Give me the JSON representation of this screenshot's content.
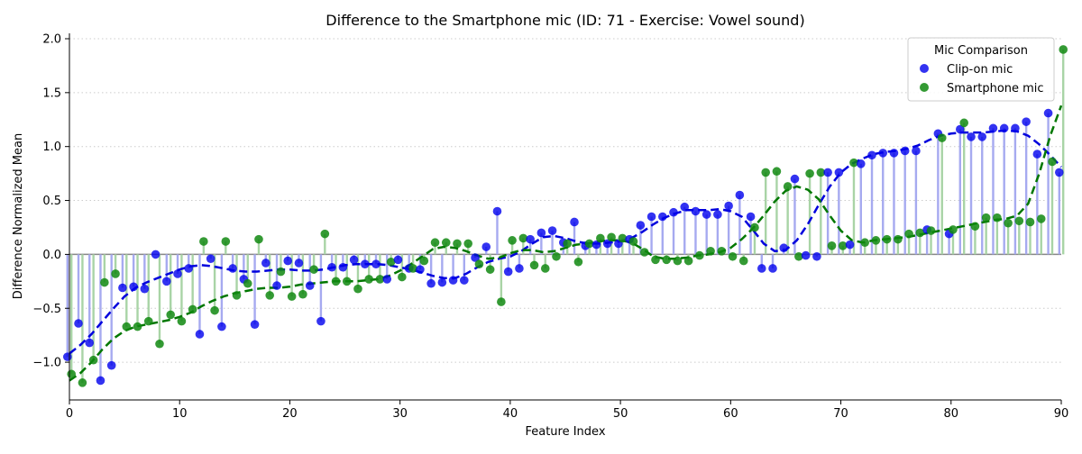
{
  "chart_data": {
    "type": "scatter",
    "title": "Difference to the Smartphone mic (ID: 71 - Exercise: Vowel sound)",
    "xlabel": "Feature Index",
    "ylabel": "Difference Normalized Mean",
    "xlim": [
      0,
      90
    ],
    "ylim": [
      -1.35,
      2.05
    ],
    "xticks": [
      0,
      10,
      20,
      30,
      40,
      50,
      60,
      70,
      80,
      90
    ],
    "yticks": [
      -1.0,
      -0.5,
      0.0,
      0.5,
      1.0,
      1.5,
      2.0
    ],
    "xtick_labels": [
      "0",
      "10",
      "20",
      "30",
      "40",
      "50",
      "60",
      "70",
      "80",
      "90"
    ],
    "ytick_labels": [
      "−1.0",
      "−0.5",
      "0.0",
      "0.5",
      "1.0",
      "1.5",
      "2.0"
    ],
    "grid": "horizontal dotted",
    "legend": {
      "title": "Mic Comparison",
      "placement": "upper right"
    },
    "series": [
      {
        "name": "Clip-on mic",
        "color": "#0000ee",
        "stem_color": "#a6aaf0",
        "trend_color": "#0000dd",
        "x": [
          0,
          1,
          2,
          3,
          4,
          5,
          6,
          7,
          8,
          9,
          10,
          11,
          12,
          13,
          14,
          15,
          16,
          17,
          18,
          19,
          20,
          21,
          22,
          23,
          24,
          25,
          26,
          27,
          28,
          29,
          30,
          31,
          32,
          33,
          34,
          35,
          36,
          37,
          38,
          39,
          40,
          41,
          42,
          43,
          44,
          45,
          46,
          47,
          48,
          49,
          50,
          51,
          52,
          53,
          54,
          55,
          56,
          57,
          58,
          59,
          60,
          61,
          62,
          63,
          64,
          65,
          66,
          67,
          68,
          69,
          70,
          71,
          72,
          73,
          74,
          75,
          76,
          77,
          78,
          79,
          80,
          81,
          82,
          83,
          84,
          85,
          86,
          87,
          88,
          89,
          90
        ],
        "values": [
          -0.95,
          -0.64,
          -0.82,
          -1.17,
          -1.03,
          -0.31,
          -0.3,
          -0.32,
          0.0,
          -0.25,
          -0.18,
          -0.13,
          -0.74,
          -0.04,
          -0.67,
          -0.13,
          -0.23,
          -0.65,
          -0.08,
          -0.29,
          -0.06,
          -0.08,
          -0.29,
          -0.62,
          -0.12,
          -0.12,
          -0.05,
          -0.09,
          -0.09,
          -0.23,
          -0.05,
          -0.13,
          -0.14,
          -0.27,
          -0.26,
          -0.24,
          -0.24,
          -0.03,
          0.07,
          0.4,
          -0.16,
          -0.13,
          0.14,
          0.2,
          0.22,
          0.11,
          0.3,
          0.08,
          0.09,
          0.1,
          0.1,
          0.14,
          0.27,
          0.35,
          0.35,
          0.39,
          0.44,
          0.4,
          0.37,
          0.37,
          0.45,
          0.55,
          0.35,
          -0.13,
          -0.13,
          0.06,
          0.7,
          -0.01,
          -0.02,
          0.76,
          0.76,
          0.09,
          0.84,
          0.92,
          0.94,
          0.94,
          0.96,
          0.96,
          0.23,
          1.12,
          0.19,
          1.16,
          1.09,
          1.09,
          1.17,
          1.17,
          1.17,
          1.23,
          0.93,
          1.31,
          0.76
        ],
        "trend": [
          -0.92,
          -0.84,
          -0.74,
          -0.62,
          -0.5,
          -0.39,
          -0.31,
          -0.26,
          -0.22,
          -0.18,
          -0.14,
          -0.11,
          -0.1,
          -0.11,
          -0.13,
          -0.15,
          -0.16,
          -0.16,
          -0.15,
          -0.14,
          -0.14,
          -0.15,
          -0.15,
          -0.14,
          -0.12,
          -0.1,
          -0.09,
          -0.09,
          -0.09,
          -0.1,
          -0.12,
          -0.14,
          -0.17,
          -0.2,
          -0.22,
          -0.22,
          -0.18,
          -0.12,
          -0.07,
          -0.04,
          -0.02,
          0.03,
          0.1,
          0.16,
          0.17,
          0.15,
          0.12,
          0.1,
          0.1,
          0.11,
          0.12,
          0.15,
          0.21,
          0.28,
          0.34,
          0.38,
          0.41,
          0.41,
          0.41,
          0.42,
          0.4,
          0.35,
          0.23,
          0.1,
          0.03,
          0.04,
          0.13,
          0.28,
          0.46,
          0.63,
          0.76,
          0.84,
          0.89,
          0.93,
          0.95,
          0.96,
          0.98,
          1.01,
          1.06,
          1.1,
          1.12,
          1.13,
          1.13,
          1.13,
          1.14,
          1.15,
          1.14,
          1.1,
          1.02,
          0.92,
          0.81
        ]
      },
      {
        "name": "Smartphone mic",
        "color": "#118811",
        "stem_color": "#a9d4a6",
        "trend_color": "#007700",
        "x": [
          0,
          1,
          2,
          3,
          4,
          5,
          6,
          7,
          8,
          9,
          10,
          11,
          12,
          13,
          14,
          15,
          16,
          17,
          18,
          19,
          20,
          21,
          22,
          23,
          24,
          25,
          26,
          27,
          28,
          29,
          30,
          31,
          32,
          33,
          34,
          35,
          36,
          37,
          38,
          39,
          40,
          41,
          42,
          43,
          44,
          45,
          46,
          47,
          48,
          49,
          50,
          51,
          52,
          53,
          54,
          55,
          56,
          57,
          58,
          59,
          60,
          61,
          62,
          63,
          64,
          65,
          66,
          67,
          68,
          69,
          70,
          71,
          72,
          73,
          74,
          75,
          76,
          77,
          78,
          79,
          80,
          81,
          82,
          83,
          84,
          85,
          86,
          87,
          88,
          89,
          90
        ],
        "values": [
          -1.11,
          -1.19,
          -0.98,
          -0.26,
          -0.18,
          -0.67,
          -0.67,
          -0.62,
          -0.83,
          -0.56,
          -0.62,
          -0.51,
          0.12,
          -0.52,
          0.12,
          -0.38,
          -0.27,
          0.14,
          -0.38,
          -0.16,
          -0.39,
          -0.37,
          -0.14,
          0.19,
          -0.25,
          -0.25,
          -0.32,
          -0.23,
          -0.23,
          -0.07,
          -0.21,
          -0.13,
          -0.06,
          0.11,
          0.11,
          0.1,
          0.1,
          -0.09,
          -0.14,
          -0.44,
          0.13,
          0.15,
          -0.1,
          -0.13,
          -0.02,
          0.1,
          -0.07,
          0.1,
          0.15,
          0.16,
          0.15,
          0.12,
          0.02,
          -0.05,
          -0.05,
          -0.06,
          -0.06,
          -0.01,
          0.03,
          0.03,
          -0.02,
          -0.06,
          0.25,
          0.76,
          0.77,
          0.63,
          -0.02,
          0.75,
          0.76,
          0.08,
          0.08,
          0.85,
          0.11,
          0.13,
          0.14,
          0.14,
          0.19,
          0.2,
          0.22,
          1.08,
          0.23,
          1.22,
          0.26,
          0.34,
          0.34,
          0.29,
          0.31,
          0.3,
          0.33,
          0.86,
          1.9
        ]
      }
    ],
    "smartphone_trend": [
      -1.17,
      -1.1,
      -1.0,
      -0.88,
      -0.78,
      -0.71,
      -0.67,
      -0.65,
      -0.63,
      -0.61,
      -0.58,
      -0.54,
      -0.48,
      -0.43,
      -0.39,
      -0.36,
      -0.34,
      -0.32,
      -0.31,
      -0.31,
      -0.3,
      -0.28,
      -0.27,
      -0.26,
      -0.25,
      -0.25,
      -0.25,
      -0.24,
      -0.23,
      -0.2,
      -0.15,
      -0.09,
      -0.02,
      0.05,
      0.07,
      0.06,
      0.03,
      -0.01,
      -0.04,
      -0.03,
      0.01,
      0.04,
      0.04,
      0.02,
      0.03,
      0.06,
      0.09,
      0.1,
      0.12,
      0.13,
      0.13,
      0.11,
      0.05,
      -0.02,
      -0.04,
      -0.04,
      -0.03,
      -0.01,
      0.0,
      0.02,
      0.06,
      0.14,
      0.24,
      0.36,
      0.49,
      0.59,
      0.63,
      0.6,
      0.51,
      0.36,
      0.22,
      0.13,
      0.11,
      0.13,
      0.14,
      0.15,
      0.16,
      0.18,
      0.2,
      0.22,
      0.24,
      0.26,
      0.28,
      0.3,
      0.32,
      0.33,
      0.36,
      0.47,
      0.75,
      1.1,
      1.38
    ]
  }
}
